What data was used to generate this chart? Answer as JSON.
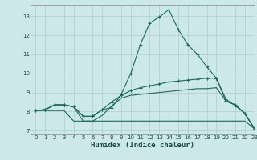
{
  "xlabel": "Humidex (Indice chaleur)",
  "bg_color": "#cce8e8",
  "grid_color": "#b0cccc",
  "line_color": "#1a6b5a",
  "xlim": [
    -0.5,
    23
  ],
  "ylim": [
    6.8,
    13.6
  ],
  "yticks": [
    7,
    8,
    9,
    10,
    11,
    12,
    13
  ],
  "xticks": [
    0,
    1,
    2,
    3,
    4,
    5,
    6,
    7,
    8,
    9,
    10,
    11,
    12,
    13,
    14,
    15,
    16,
    17,
    18,
    19,
    20,
    21,
    22,
    23
  ],
  "line1_x": [
    0,
    1,
    2,
    3,
    4,
    5,
    6,
    7,
    8,
    9,
    10,
    11,
    12,
    13,
    14,
    15,
    16,
    17,
    18,
    19,
    20,
    21,
    22,
    23
  ],
  "line1_y": [
    8.05,
    8.1,
    8.35,
    8.35,
    8.25,
    7.75,
    7.75,
    8.1,
    8.2,
    8.9,
    10.0,
    11.5,
    12.65,
    12.95,
    13.35,
    12.3,
    11.5,
    11.0,
    10.35,
    9.75,
    8.65,
    8.3,
    7.9,
    7.1
  ],
  "line2_x": [
    0,
    1,
    2,
    3,
    4,
    5,
    6,
    7,
    8,
    9,
    10,
    11,
    12,
    13,
    14,
    15,
    16,
    17,
    18,
    19,
    20,
    21,
    22,
    23
  ],
  "line2_y": [
    8.05,
    8.1,
    8.35,
    8.35,
    8.25,
    7.75,
    7.75,
    8.1,
    8.5,
    8.85,
    9.1,
    9.25,
    9.35,
    9.45,
    9.55,
    9.6,
    9.65,
    9.7,
    9.75,
    9.75,
    8.55,
    8.35,
    7.9,
    7.1
  ],
  "line3_x": [
    0,
    1,
    2,
    3,
    4,
    5,
    6,
    7,
    8,
    9,
    10,
    11,
    12,
    13,
    14,
    15,
    16,
    17,
    18,
    19,
    20,
    21,
    22,
    23
  ],
  "line3_y": [
    8.05,
    8.1,
    8.35,
    8.35,
    8.25,
    7.5,
    7.5,
    7.8,
    8.3,
    8.7,
    8.85,
    8.9,
    8.95,
    9.0,
    9.05,
    9.1,
    9.15,
    9.2,
    9.2,
    9.25,
    8.55,
    8.35,
    7.9,
    7.1
  ],
  "line4_x": [
    0,
    1,
    2,
    3,
    4,
    5,
    6,
    7,
    8,
    9,
    10,
    11,
    12,
    13,
    14,
    15,
    16,
    17,
    18,
    19,
    20,
    21,
    22,
    23
  ],
  "line4_y": [
    8.05,
    8.05,
    8.05,
    8.05,
    7.5,
    7.5,
    7.5,
    7.5,
    7.5,
    7.5,
    7.5,
    7.5,
    7.5,
    7.5,
    7.5,
    7.5,
    7.5,
    7.5,
    7.5,
    7.5,
    7.5,
    7.5,
    7.5,
    7.1
  ]
}
